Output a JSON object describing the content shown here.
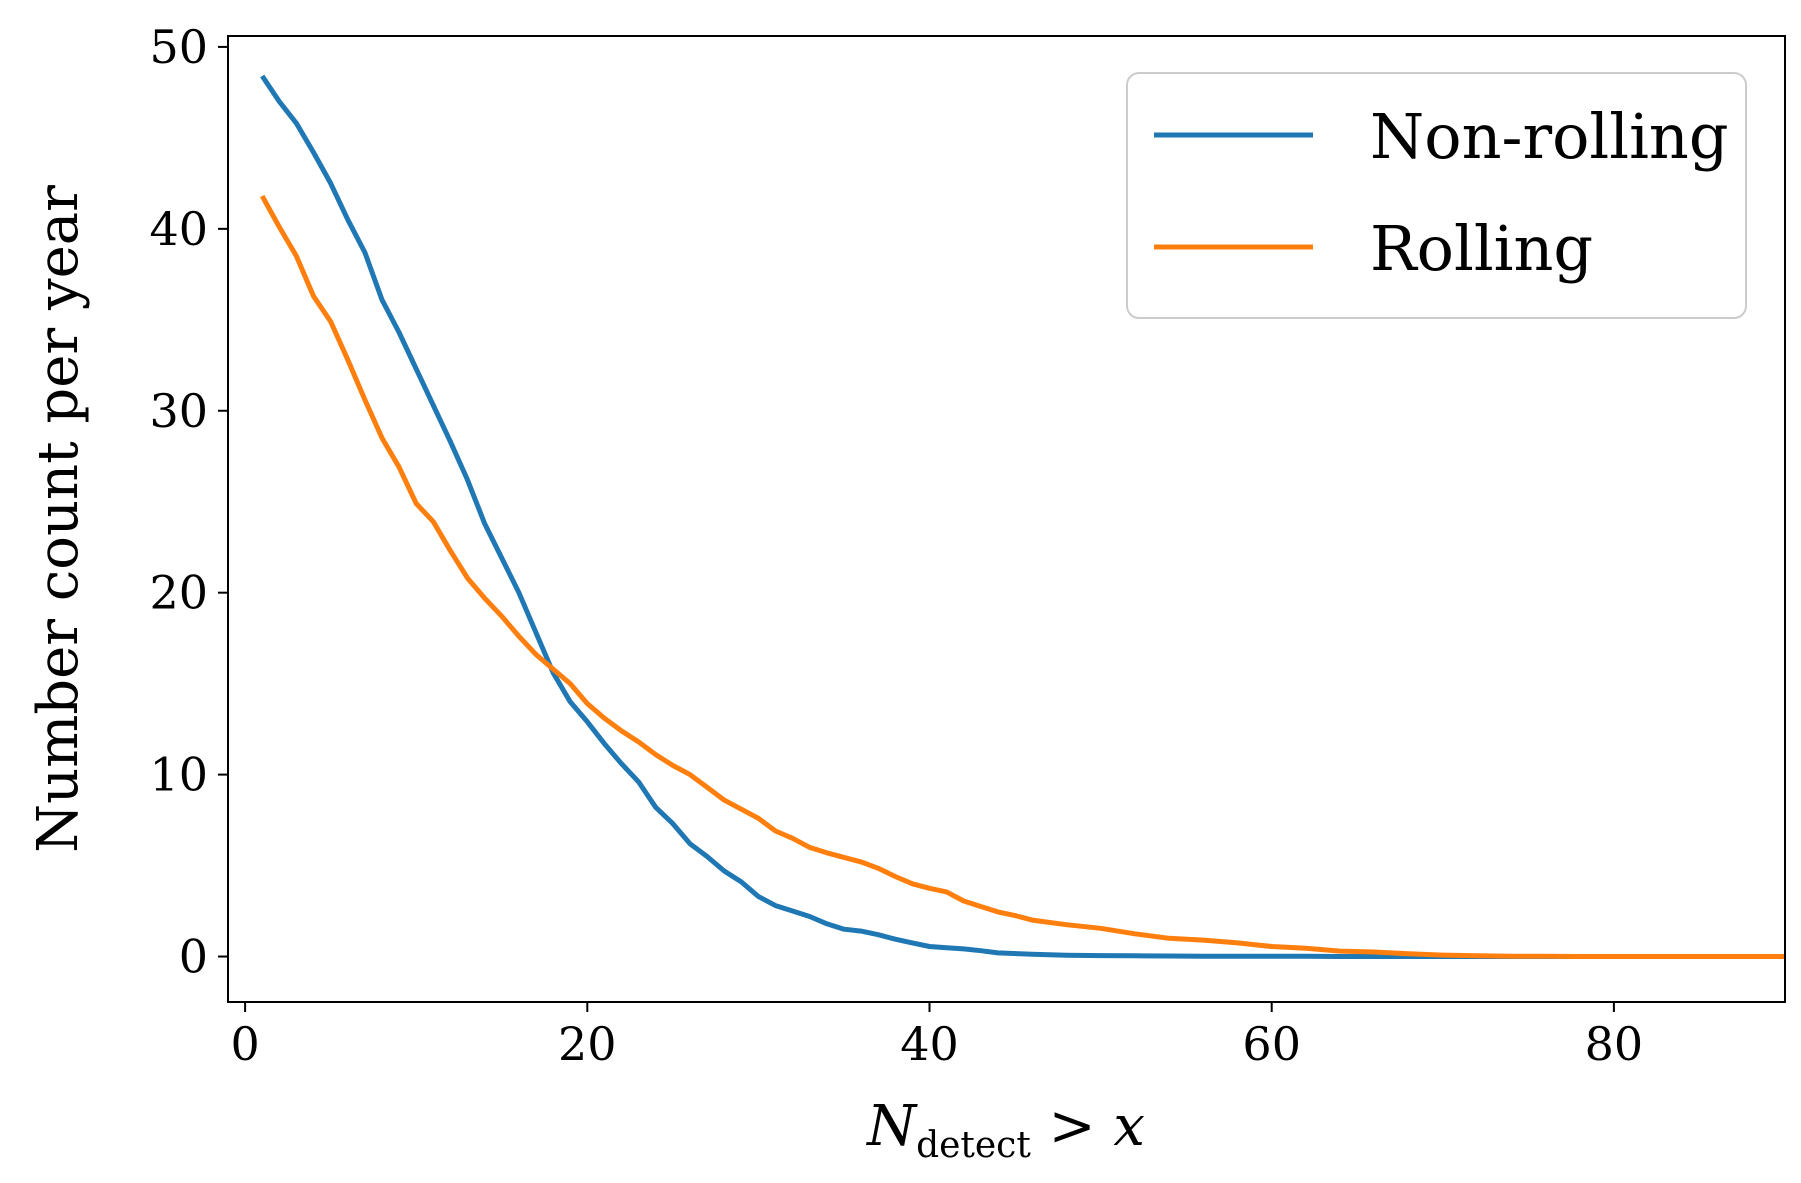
{
  "chart_data": {
    "type": "line",
    "xlabel": "N_detect > x",
    "xlabel_parts": {
      "main": "N",
      "sub": "detect",
      "rest": " > x"
    },
    "ylabel": "Number count per year",
    "xlim": [
      -1,
      90
    ],
    "ylim": [
      -2.5,
      50.6
    ],
    "xticks": [
      0,
      20,
      40,
      60,
      80
    ],
    "yticks": [
      0,
      10,
      20,
      30,
      40,
      50
    ],
    "legend_position": "upper-right",
    "grid": false,
    "series": [
      {
        "name": "Non-rolling",
        "color": "#1f77b4",
        "x": [
          1,
          2,
          3,
          4,
          5,
          6,
          7,
          8,
          9,
          10,
          11,
          12,
          13,
          14,
          15,
          16,
          17,
          18,
          19,
          20,
          21,
          22,
          23,
          24,
          25,
          26,
          27,
          28,
          29,
          30,
          31,
          32,
          33,
          34,
          35,
          36,
          37,
          38,
          39,
          40,
          41,
          42,
          43,
          44,
          46,
          48,
          50,
          52,
          54,
          56,
          58,
          60,
          62,
          64,
          66,
          68,
          70,
          72,
          74,
          76,
          78,
          80,
          82,
          84,
          86,
          88,
          90
        ],
        "y": [
          48.4,
          47.0,
          45.8,
          44.2,
          42.5,
          40.5,
          38.7,
          36.1,
          34.3,
          32.3,
          30.3,
          28.3,
          26.2,
          23.8,
          21.9,
          20.0,
          17.8,
          15.6,
          14.0,
          12.9,
          11.7,
          10.6,
          9.6,
          8.2,
          7.3,
          6.2,
          5.5,
          4.7,
          4.1,
          3.3,
          2.8,
          2.5,
          2.2,
          1.8,
          1.5,
          1.4,
          1.2,
          0.95,
          0.75,
          0.55,
          0.48,
          0.42,
          0.32,
          0.2,
          0.13,
          0.07,
          0.05,
          0.04,
          0.03,
          0.02,
          0.01,
          0.01,
          0.01,
          0,
          0,
          0,
          0,
          0,
          0,
          0,
          0,
          0,
          0,
          0,
          0,
          0,
          0
        ]
      },
      {
        "name": "Rolling",
        "color": "#ff7f0e",
        "x": [
          1,
          2,
          3,
          4,
          5,
          6,
          7,
          8,
          9,
          10,
          11,
          12,
          13,
          14,
          15,
          16,
          17,
          18,
          19,
          20,
          21,
          22,
          23,
          24,
          25,
          26,
          27,
          28,
          29,
          30,
          31,
          32,
          33,
          34,
          35,
          36,
          37,
          38,
          39,
          40,
          41,
          42,
          43,
          44,
          45,
          46,
          48,
          50,
          52,
          54,
          56,
          58,
          60,
          62,
          64,
          66,
          68,
          70,
          72,
          74,
          76,
          78,
          80,
          82,
          84,
          86,
          88,
          90
        ],
        "y": [
          41.8,
          40.1,
          38.5,
          36.3,
          34.9,
          32.8,
          30.6,
          28.5,
          26.9,
          24.9,
          23.9,
          22.3,
          20.8,
          19.7,
          18.7,
          17.6,
          16.6,
          15.8,
          15.0,
          13.9,
          13.1,
          12.4,
          11.8,
          11.1,
          10.5,
          10.0,
          9.3,
          8.6,
          8.1,
          7.6,
          6.9,
          6.5,
          6.0,
          5.7,
          5.45,
          5.2,
          4.85,
          4.4,
          4.0,
          3.75,
          3.55,
          3.05,
          2.75,
          2.45,
          2.25,
          2.0,
          1.75,
          1.55,
          1.25,
          1.0,
          0.9,
          0.75,
          0.55,
          0.45,
          0.3,
          0.25,
          0.15,
          0.08,
          0.04,
          0.02,
          0.01,
          0,
          0,
          0,
          0,
          0,
          0,
          0
        ]
      }
    ]
  }
}
